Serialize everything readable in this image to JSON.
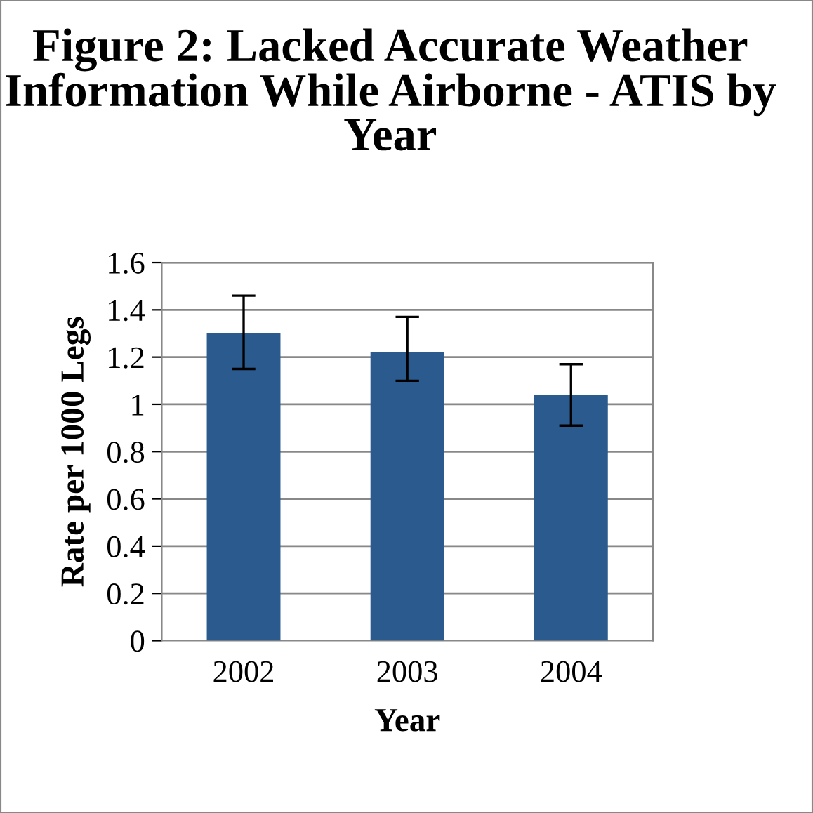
{
  "chart_data": {
    "type": "bar",
    "title": "Figure 2: Lacked Accurate Weather Information While Airborne - ATIS by Year",
    "xlabel": "Year",
    "ylabel": "Rate per 1000 Legs",
    "categories": [
      "2002",
      "2003",
      "2004"
    ],
    "values": [
      1.3,
      1.22,
      1.04
    ],
    "errors": [
      [
        1.15,
        1.46
      ],
      [
        1.1,
        1.37
      ],
      [
        0.91,
        1.17
      ]
    ],
    "color": "#2a5a8e",
    "ylim": [
      0,
      1.6
    ],
    "yticks": [
      0,
      0.2,
      0.4,
      0.6,
      0.8,
      1,
      1.2,
      1.4,
      1.6
    ],
    "grid": "y",
    "legend": false
  }
}
